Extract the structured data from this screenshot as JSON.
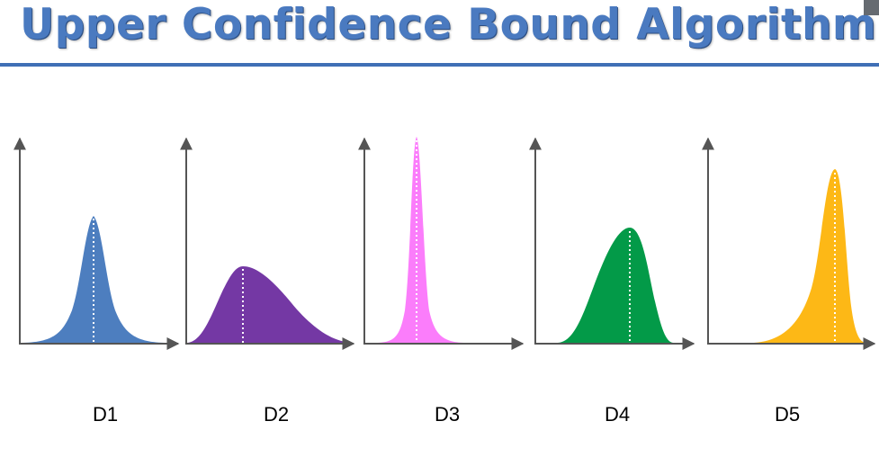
{
  "slide": {
    "title": "Upper Confidence Bound Algorithm",
    "title_color": "#4a7ac0",
    "rule_color": "#3f6fb6"
  },
  "distributions": [
    {
      "label": "D1",
      "color": "#4d7ebf",
      "shape": "symmetric-peaked"
    },
    {
      "label": "D2",
      "color": "#7438a4",
      "shape": "wide-right-skewed"
    },
    {
      "label": "D3",
      "color": "#fb7dfb",
      "shape": "narrow-tall"
    },
    {
      "label": "D4",
      "color": "#039a48",
      "shape": "left-skewed"
    },
    {
      "label": "D5",
      "color": "#fdb816",
      "shape": "left-skewed-tall"
    }
  ]
}
